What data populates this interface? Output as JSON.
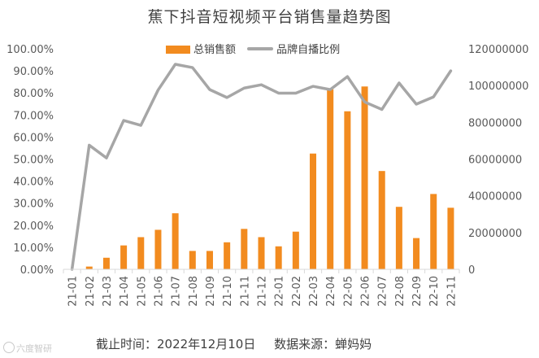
{
  "chart_data": {
    "type": "bar+line",
    "title": "蕉下抖音短视频平台销售量趋势图",
    "categories": [
      "21-01",
      "21-02",
      "21-03",
      "21-04",
      "21-05",
      "21-06",
      "21-07",
      "21-08",
      "21-09",
      "21-10",
      "21-11",
      "21-12",
      "22-01",
      "22-02",
      "22-03",
      "22-04",
      "22-05",
      "22-06",
      "22-07",
      "22-08",
      "22-09",
      "22-10",
      "22-11"
    ],
    "series": [
      {
        "name": "总销售额",
        "type": "bar",
        "axis": "right",
        "color": "#f28b1f",
        "values": [
          0,
          1500000,
          6300000,
          13000000,
          17500000,
          21500000,
          30500000,
          10000000,
          10000000,
          14700000,
          22000000,
          17500000,
          12500000,
          20500000,
          63000000,
          98000000,
          86000000,
          99500000,
          53500000,
          34000000,
          17000000,
          41000000,
          33500000
        ]
      },
      {
        "name": "品牌自播比例",
        "type": "line",
        "axis": "left",
        "color": "#a6a6a6",
        "values": [
          0.0,
          0.563,
          0.505,
          0.675,
          0.653,
          0.813,
          0.93,
          0.915,
          0.815,
          0.779,
          0.822,
          0.837,
          0.799,
          0.799,
          0.83,
          0.815,
          0.874,
          0.759,
          0.725,
          0.845,
          0.749,
          0.782,
          0.9
        ]
      }
    ],
    "y_left": {
      "min": 0,
      "max": 1,
      "ticks": [
        "0.00%",
        "10.00%",
        "20.00%",
        "30.00%",
        "40.00%",
        "50.00%",
        "60.00%",
        "70.00%",
        "80.00%",
        "90.00%",
        "100.00%"
      ]
    },
    "y_right": {
      "min": 0,
      "max": 120000000,
      "ticks": [
        "0",
        "20000000",
        "40000000",
        "60000000",
        "80000000",
        "100000000",
        "120000000"
      ]
    },
    "legend": "top-center",
    "grid": false
  },
  "footer": {
    "date_text": "截止时间：2022年12月10日",
    "source_text": "数据来源：蝉妈妈"
  },
  "watermark": {
    "text": "六度智研"
  }
}
